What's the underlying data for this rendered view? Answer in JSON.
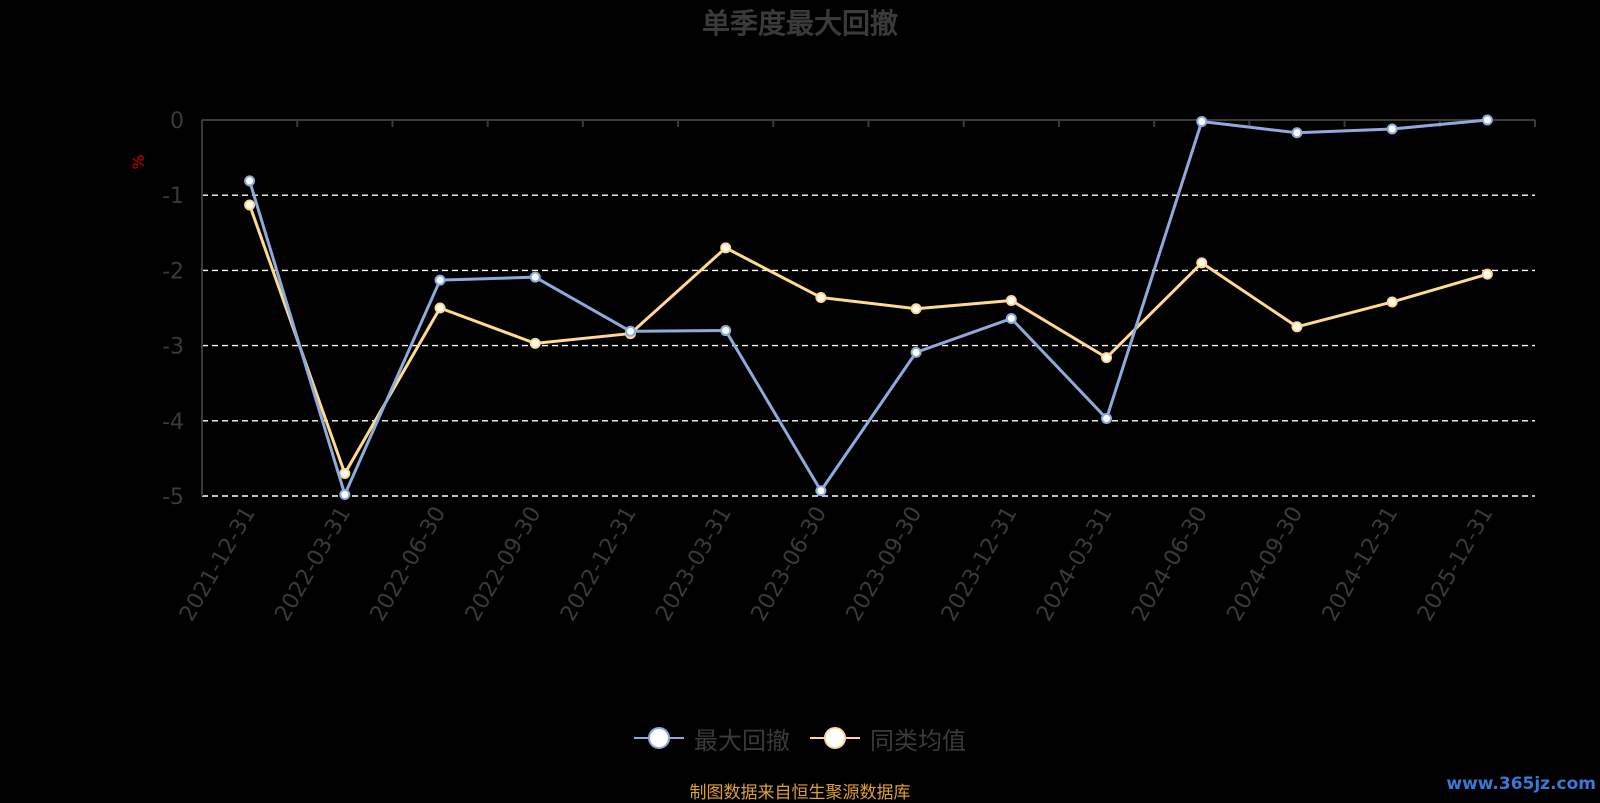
{
  "title": "单季度最大回撤",
  "source_note": "制图数据来自恒生聚源数据库",
  "watermark": "www.365jz.com",
  "chart_data": {
    "type": "line",
    "title": "单季度最大回撤",
    "ylabel": "%",
    "xlabel": "",
    "ylim": [
      -5,
      0
    ],
    "yticks": [
      0,
      -1,
      -2,
      -3,
      -4,
      -5
    ],
    "grid": true,
    "legend_position": "bottom-center",
    "categories": [
      "2021-12-31",
      "2022-03-31",
      "2022-06-30",
      "2022-09-30",
      "2022-12-31",
      "2023-03-31",
      "2023-06-30",
      "2023-09-30",
      "2023-12-31",
      "2024-03-31",
      "2024-06-30",
      "2024-09-30",
      "2024-12-31",
      "2025-12-31"
    ],
    "series": [
      {
        "name": "最大回撤",
        "color": "#8eaadb",
        "values": [
          -0.81,
          -4.98,
          -2.13,
          -2.09,
          -2.81,
          -2.8,
          -4.93,
          -3.09,
          -2.64,
          -3.97,
          -0.02,
          -0.17,
          -0.12,
          0.0
        ]
      },
      {
        "name": "同类均值",
        "color": "#fed98e",
        "values": [
          -1.13,
          -4.7,
          -2.5,
          -2.97,
          -2.84,
          -1.7,
          -2.36,
          -2.51,
          -2.4,
          -3.16,
          -1.9,
          -2.75,
          -2.42,
          -2.05
        ]
      }
    ]
  }
}
